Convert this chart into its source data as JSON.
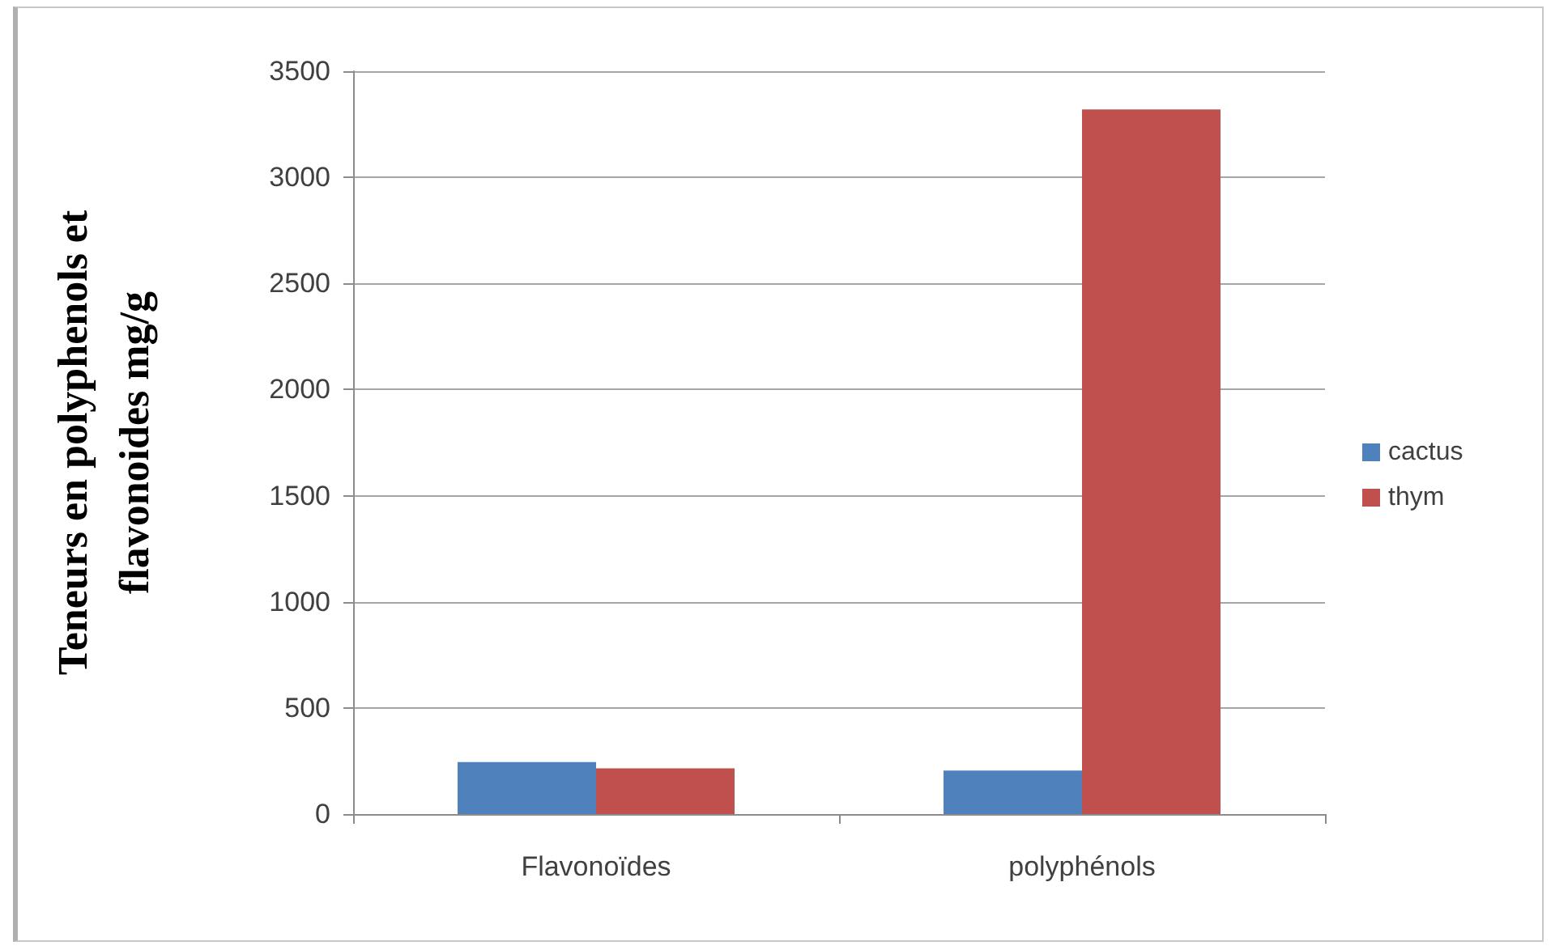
{
  "chart_data": {
    "type": "bar",
    "ylabel": "Teneurs en polyphenols et flavonoides mg/g",
    "categories": [
      "Flavonoïdes",
      "polyphénols"
    ],
    "series": [
      {
        "name": "cactus",
        "color": "#4f81bd",
        "values": [
          245,
          205
        ]
      },
      {
        "name": "thym",
        "color": "#c0504d",
        "values": [
          215,
          3320
        ]
      }
    ],
    "ylim": [
      0,
      3500
    ],
    "yticks": [
      0,
      500,
      1000,
      1500,
      2000,
      2500,
      3000,
      3500
    ],
    "grid": "y",
    "legend": "right"
  }
}
